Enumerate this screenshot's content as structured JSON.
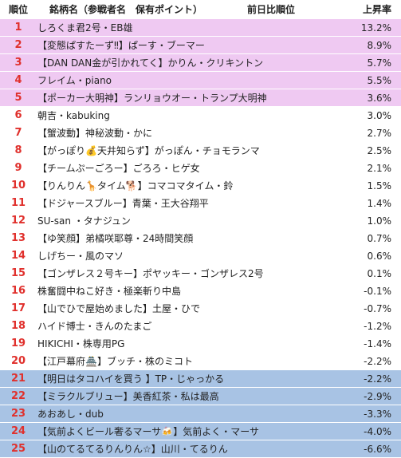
{
  "header": {
    "rank": "順位",
    "name": "銘柄名（参戦者名　保有ポイント）",
    "prev": "前日比順位",
    "rate": "上昇率"
  },
  "rows": [
    [
      1,
      "しろくま君2号・EB雄",
      "13.2%"
    ],
    [
      2,
      "【変態ぱすたーず‼】ぱーす・ブーマー",
      "8.9%"
    ],
    [
      3,
      "【DAN DAN金が引かれてく】かりん・クリキントン",
      "5.7%"
    ],
    [
      4,
      "フレイム・piano",
      "5.5%"
    ],
    [
      5,
      "【ポーカー大明神】ランリョウオー・トランプ大明神",
      "3.6%"
    ],
    [
      6,
      "朝吉・kabuking",
      "3.0%"
    ],
    [
      7,
      "【蟹波動】神秘波動・かに",
      "2.7%"
    ],
    [
      8,
      "【がっぽり💰天井知らず】がっぽん・チョモランマ",
      "2.5%"
    ],
    [
      9,
      "【チームぷーごろー】ごろろ・ヒゲ女",
      "2.1%"
    ],
    [
      10,
      "【りんりん🦒タイム🐕】コマコマタイム・鈴",
      "1.5%"
    ],
    [
      11,
      "【ドジャースブルー】青葉・王大谷翔平",
      "1.4%"
    ],
    [
      12,
      "SU-san ・タナジュン",
      "1.0%"
    ],
    [
      13,
      "【ゆ笑顔】弟橘咲耶尊・24時間笑顔",
      "0.7%"
    ],
    [
      14,
      "しげちー・風のマソ",
      "0.6%"
    ],
    [
      15,
      "【ゴンザレス２号キー】ポヤッキー・ゴンザレス2号",
      "0.1%"
    ],
    [
      16,
      "株奮闘中ねこ好き・極楽斬り中島",
      "-0.1%"
    ],
    [
      17,
      "【山でひで屋始めました】土屋・ひで",
      "-0.7%"
    ],
    [
      18,
      "ハイド博士・きんのたまご",
      "-1.2%"
    ],
    [
      19,
      "HIKICHI・株専用PG",
      "-1.4%"
    ],
    [
      20,
      "【江戸幕府🏯】ブッチ・株のミコト",
      "-2.2%"
    ],
    [
      21,
      "【明日はタコハイを買う 】TP・じゃっかる",
      "-2.2%"
    ],
    [
      22,
      "【ミラクルブリュー】美香紅茶・私は最高",
      "-2.9%"
    ],
    [
      23,
      "あおあし・dub",
      "-3.3%"
    ],
    [
      24,
      "【気前よくビール奢るマーサ🍻】気前よく・マーサ",
      "-4.0%"
    ],
    [
      25,
      "【山のてるてるりんりん☆】山川・てるりん",
      "-6.6%"
    ]
  ]
}
